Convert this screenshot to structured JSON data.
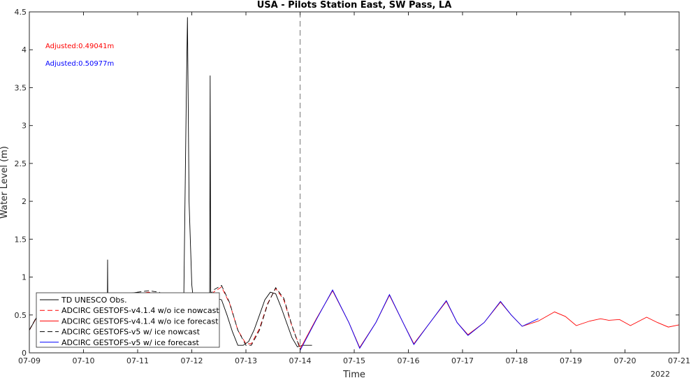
{
  "chart_data": {
    "type": "line",
    "title": "USA - Pilots Station East, SW Pass, LA",
    "xlabel": "Time",
    "ylabel": "Water Level (m)",
    "xlim": [
      9,
      21
    ],
    "ylim": [
      0,
      4.5
    ],
    "x_ticks": [
      9,
      10,
      11,
      12,
      13,
      14,
      15,
      16,
      17,
      18,
      19,
      20,
      21
    ],
    "x_tick_labels": [
      "07-09",
      "07-10",
      "07-11",
      "07-12",
      "07-13",
      "07-14",
      "07-15",
      "07-16",
      "07-17",
      "07-18",
      "07-19",
      "07-20",
      "07-21"
    ],
    "y_ticks": [
      0,
      0.5,
      1,
      1.5,
      2,
      2.5,
      3,
      3.5,
      4,
      4.5
    ],
    "y_tick_labels": [
      "0",
      "0.5",
      "1",
      "1.5",
      "2",
      "2.5",
      "3",
      "3.5",
      "4",
      "4.5"
    ],
    "year_label": "2022",
    "grid": false,
    "nowcast_forecast_divider_x": 14.0,
    "annotations": [
      {
        "text": "Adjusted:0.49041m",
        "color": "#ff0000"
      },
      {
        "text": "Adjusted:0.50977m",
        "color": "#0000ff"
      }
    ],
    "legend_position": "lower-left",
    "series": [
      {
        "name": "TD UNESCO Obs.",
        "color": "#000000",
        "dash": "solid",
        "x": [
          9.0,
          9.2,
          9.4,
          9.6,
          9.8,
          10.0,
          10.2,
          10.38,
          10.44,
          10.445,
          10.45,
          10.5,
          10.6,
          10.8,
          11.0,
          11.2,
          11.4,
          11.6,
          11.8,
          11.85,
          11.9,
          11.92,
          11.95,
          12.0,
          12.05,
          12.1,
          12.2,
          12.3,
          12.33,
          12.34,
          12.35,
          12.45,
          12.55,
          12.65,
          12.75,
          12.85,
          12.95,
          13.05,
          13.15,
          13.25,
          13.35,
          13.45,
          13.55,
          13.65,
          13.75,
          13.85,
          13.95,
          14.05,
          14.15,
          14.22
        ],
        "y": [
          0.3,
          0.55,
          0.75,
          0.75,
          0.6,
          0.45,
          0.4,
          0.5,
          0.55,
          1.23,
          0.55,
          0.6,
          0.7,
          0.78,
          0.8,
          0.7,
          0.6,
          0.5,
          0.45,
          0.6,
          3.5,
          4.43,
          2.0,
          0.9,
          0.55,
          0.5,
          0.6,
          0.75,
          0.8,
          3.66,
          0.8,
          0.72,
          0.7,
          0.5,
          0.28,
          0.1,
          0.1,
          0.15,
          0.3,
          0.5,
          0.7,
          0.8,
          0.78,
          0.6,
          0.4,
          0.2,
          0.08,
          0.1,
          0.1,
          0.1
        ]
      },
      {
        "name": "ADCIRC GESTOFS-v4.1.4 w/o ice nowcast",
        "color": "#ff0000",
        "dash": "dashed",
        "x": [
          9.0,
          9.2,
          9.4,
          9.6,
          9.8,
          10.0,
          10.2,
          10.4,
          10.6,
          10.8,
          11.0,
          11.2,
          11.4,
          11.6,
          11.8,
          12.0,
          12.2,
          12.4,
          12.55,
          12.7,
          12.85,
          13.0,
          13.1,
          13.25,
          13.4,
          13.55,
          13.7,
          13.85,
          14.0
        ],
        "y": [
          0.3,
          0.55,
          0.75,
          0.75,
          0.6,
          0.45,
          0.4,
          0.5,
          0.6,
          0.7,
          0.78,
          0.8,
          0.78,
          0.65,
          0.5,
          0.4,
          0.6,
          0.8,
          0.87,
          0.65,
          0.3,
          0.12,
          0.12,
          0.32,
          0.65,
          0.85,
          0.7,
          0.35,
          0.07
        ]
      },
      {
        "name": "ADCIRC GESTOFS-v4.1.4 w/o ice forecast",
        "color": "#ff0000",
        "dash": "solid",
        "x": [
          14.0,
          14.3,
          14.6,
          14.9,
          15.1,
          15.4,
          15.65,
          15.9,
          16.1,
          16.4,
          16.7,
          16.9,
          17.1,
          17.4,
          17.7,
          17.9,
          18.1,
          18.4,
          18.7,
          18.9,
          19.1,
          19.35,
          19.55,
          19.7,
          19.9,
          20.1,
          20.4,
          20.6,
          20.8,
          21.0
        ],
        "y": [
          0.05,
          0.45,
          0.82,
          0.4,
          0.07,
          0.4,
          0.76,
          0.4,
          0.12,
          0.4,
          0.68,
          0.4,
          0.24,
          0.4,
          0.67,
          0.5,
          0.35,
          0.42,
          0.54,
          0.48,
          0.36,
          0.42,
          0.45,
          0.43,
          0.44,
          0.36,
          0.47,
          0.4,
          0.34,
          0.37
        ]
      },
      {
        "name": "ADCIRC GESTOFS-v5 w/ ice nowcast",
        "color": "#000000",
        "dash": "dashed",
        "x": [
          9.0,
          9.2,
          9.4,
          9.6,
          9.8,
          10.0,
          10.2,
          10.4,
          10.6,
          10.8,
          11.0,
          11.2,
          11.4,
          11.6,
          11.8,
          12.0,
          12.2,
          12.4,
          12.55,
          12.7,
          12.85,
          13.0,
          13.1,
          13.25,
          13.4,
          13.55,
          13.7,
          13.85,
          14.0
        ],
        "y": [
          0.3,
          0.56,
          0.76,
          0.76,
          0.61,
          0.46,
          0.41,
          0.51,
          0.61,
          0.71,
          0.8,
          0.82,
          0.8,
          0.66,
          0.5,
          0.4,
          0.62,
          0.83,
          0.89,
          0.66,
          0.3,
          0.1,
          0.1,
          0.3,
          0.64,
          0.86,
          0.72,
          0.36,
          0.05
        ]
      },
      {
        "name": "ADCIRC GESTOFS-v5 w/ ice forecast",
        "color": "#0000ff",
        "dash": "solid",
        "x": [
          14.0,
          14.3,
          14.6,
          14.9,
          15.1,
          15.4,
          15.65,
          15.9,
          16.1,
          16.4,
          16.7,
          16.9,
          17.1,
          17.4,
          17.7,
          17.9,
          18.1,
          18.4
        ],
        "y": [
          0.03,
          0.44,
          0.83,
          0.4,
          0.06,
          0.4,
          0.77,
          0.4,
          0.11,
          0.4,
          0.69,
          0.4,
          0.23,
          0.4,
          0.68,
          0.5,
          0.35,
          0.45
        ]
      }
    ]
  }
}
